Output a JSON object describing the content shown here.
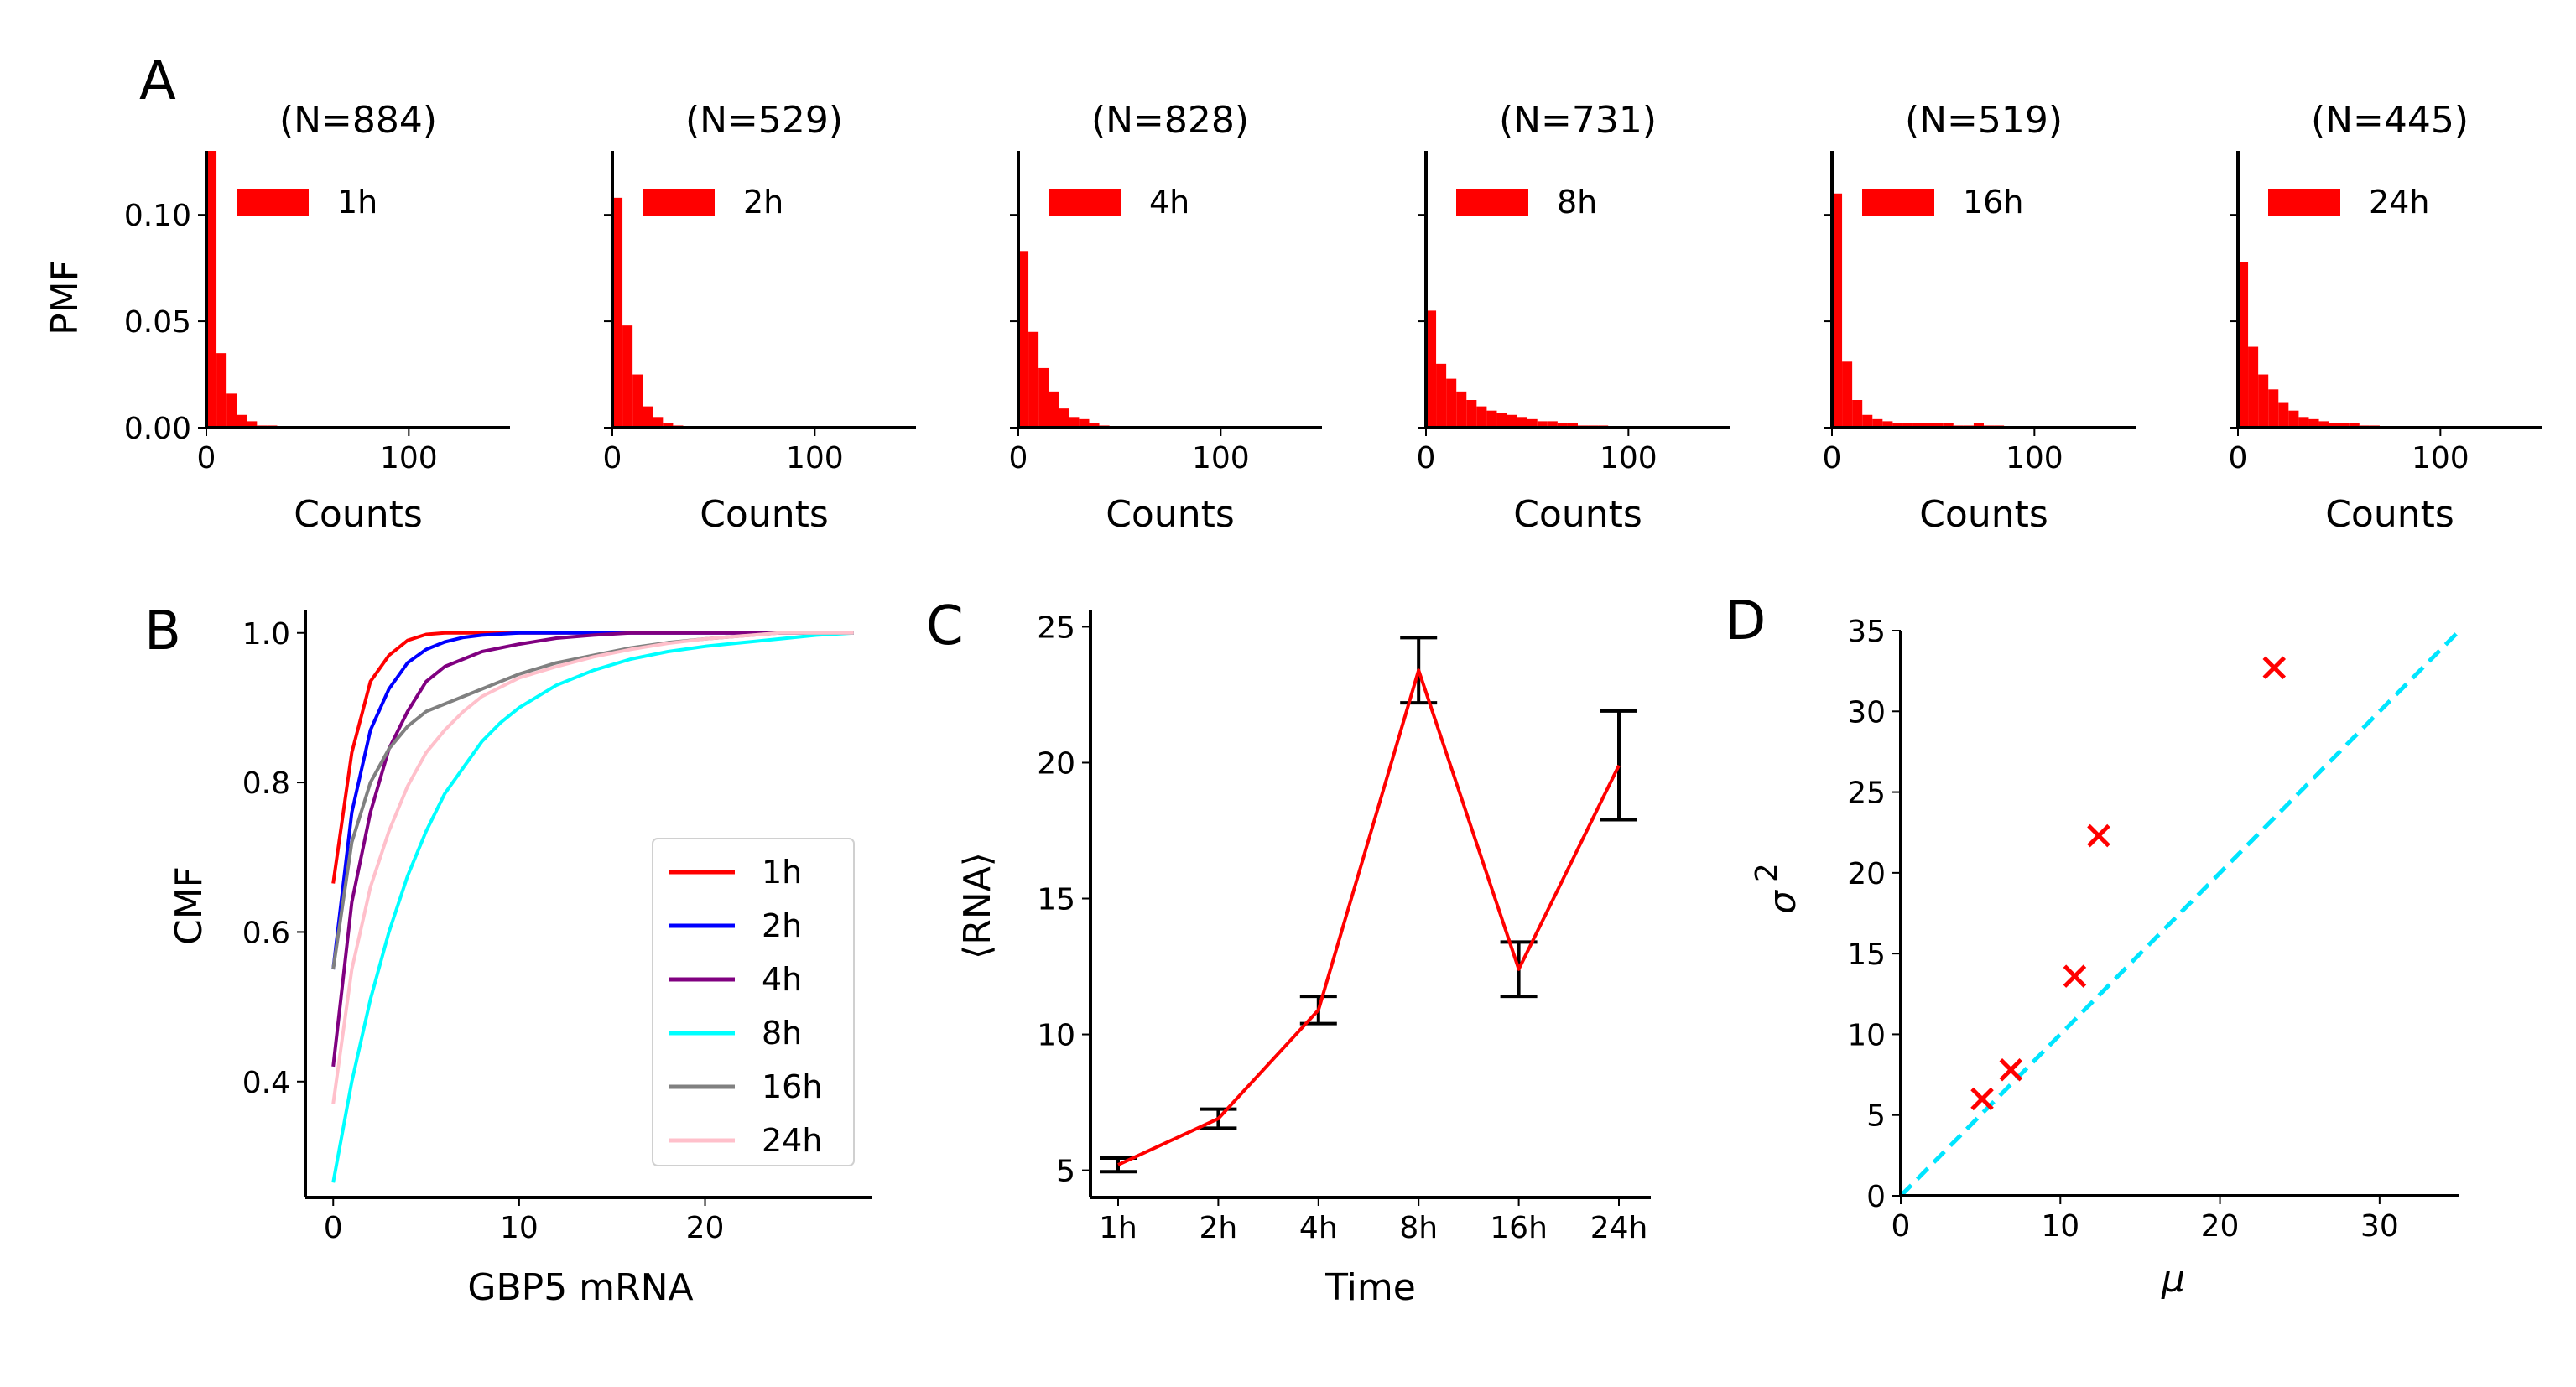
{
  "panel_letters": [
    "A",
    "B",
    "C",
    "D"
  ],
  "chart_data": [
    {
      "panel": "A",
      "type": "bar",
      "title": "(N=884)",
      "legend": "1h",
      "xlabel": "Counts",
      "ylabel": "PMF",
      "xlim": [
        0,
        150
      ],
      "ylim": [
        0,
        0.13
      ],
      "xticks": [
        0,
        100
      ],
      "yticks": [
        0.0,
        0.05,
        0.1
      ],
      "ytick_labels": [
        "0.00",
        "0.05",
        "0.10"
      ],
      "bin_width": 5,
      "values": [
        0.13,
        0.035,
        0.016,
        0.006,
        0.003,
        0.001,
        0.001,
        0.0005,
        0,
        0,
        0,
        0,
        0,
        0,
        0,
        0,
        0,
        0,
        0,
        0,
        0,
        0,
        0,
        0,
        0,
        0,
        0,
        0,
        0,
        0
      ],
      "color": "#ff0000"
    },
    {
      "panel": "A",
      "type": "bar",
      "title": "(N=529)",
      "legend": "2h",
      "xlabel": "Counts",
      "xlim": [
        0,
        150
      ],
      "ylim": [
        0,
        0.13
      ],
      "xticks": [
        0,
        100
      ],
      "bin_width": 5,
      "values": [
        0.108,
        0.048,
        0.025,
        0.01,
        0.005,
        0.002,
        0.001,
        0.0005,
        0,
        0,
        0,
        0,
        0,
        0,
        0,
        0,
        0,
        0,
        0,
        0,
        0,
        0,
        0,
        0,
        0,
        0,
        0,
        0,
        0,
        0
      ],
      "color": "#ff0000"
    },
    {
      "panel": "A",
      "type": "bar",
      "title": "(N=828)",
      "legend": "4h",
      "xlabel": "Counts",
      "xlim": [
        0,
        150
      ],
      "ylim": [
        0,
        0.13
      ],
      "xticks": [
        0,
        100
      ],
      "bin_width": 5,
      "values": [
        0.083,
        0.045,
        0.028,
        0.017,
        0.009,
        0.005,
        0.004,
        0.002,
        0.001,
        0.0005,
        0,
        0,
        0,
        0,
        0,
        0,
        0,
        0,
        0,
        0,
        0,
        0,
        0,
        0,
        0,
        0,
        0,
        0,
        0,
        0
      ],
      "color": "#ff0000"
    },
    {
      "panel": "A",
      "type": "bar",
      "title": "(N=731)",
      "legend": "8h",
      "xlabel": "Counts",
      "xlim": [
        0,
        150
      ],
      "ylim": [
        0,
        0.13
      ],
      "xticks": [
        0,
        100
      ],
      "bin_width": 5,
      "values": [
        0.055,
        0.03,
        0.023,
        0.017,
        0.013,
        0.01,
        0.008,
        0.007,
        0.006,
        0.005,
        0.004,
        0.003,
        0.003,
        0.002,
        0.002,
        0.001,
        0.001,
        0.001,
        0.0005,
        0.0005,
        0,
        0,
        0,
        0,
        0,
        0,
        0,
        0,
        0,
        0
      ],
      "color": "#ff0000"
    },
    {
      "panel": "A",
      "type": "bar",
      "title": "(N=519)",
      "legend": "16h",
      "xlabel": "Counts",
      "xlim": [
        0,
        150
      ],
      "ylim": [
        0,
        0.13
      ],
      "xticks": [
        0,
        100
      ],
      "bin_width": 5,
      "values": [
        0.11,
        0.031,
        0.013,
        0.006,
        0.004,
        0.003,
        0.002,
        0.002,
        0.002,
        0.002,
        0.002,
        0.002,
        0.001,
        0.001,
        0.002,
        0.001,
        0.001,
        0,
        0,
        0,
        0,
        0,
        0,
        0,
        0,
        0,
        0,
        0,
        0,
        0
      ],
      "color": "#ff0000"
    },
    {
      "panel": "A",
      "type": "bar",
      "title": "(N=445)",
      "legend": "24h",
      "xlabel": "Counts",
      "xlim": [
        0,
        150
      ],
      "ylim": [
        0,
        0.13
      ],
      "xticks": [
        0,
        100
      ],
      "bin_width": 5,
      "values": [
        0.078,
        0.038,
        0.025,
        0.018,
        0.012,
        0.008,
        0.005,
        0.004,
        0.003,
        0.002,
        0.002,
        0.002,
        0.001,
        0.001,
        0,
        0,
        0,
        0,
        0,
        0,
        0,
        0,
        0,
        0,
        0,
        0,
        0,
        0,
        0,
        0
      ],
      "color": "#ff0000"
    },
    {
      "panel": "B",
      "type": "line",
      "xlabel": "GBP5 mRNA",
      "ylabel": "CMF",
      "xlim": [
        -1.5,
        29
      ],
      "ylim": [
        0.245,
        1.03
      ],
      "xticks": [
        0,
        10,
        20
      ],
      "yticks": [
        0.4,
        0.6,
        0.8,
        1.0
      ],
      "ytick_labels": [
        "0.4",
        "0.6",
        "0.8",
        "1.0"
      ],
      "legend_position": "lower right",
      "series": [
        {
          "name": "1h",
          "color": "#ff0000",
          "x": [
            0,
            1,
            2,
            3,
            4,
            5,
            6,
            7,
            8,
            28
          ],
          "y": [
            0.665,
            0.84,
            0.935,
            0.97,
            0.99,
            0.998,
            1.0,
            1.0,
            1.0,
            1.0
          ]
        },
        {
          "name": "2h",
          "color": "#0000ff",
          "x": [
            0,
            1,
            2,
            3,
            4,
            5,
            6,
            7,
            8,
            10,
            12,
            28
          ],
          "y": [
            0.55,
            0.76,
            0.87,
            0.925,
            0.96,
            0.978,
            0.988,
            0.994,
            0.997,
            1.0,
            1.0,
            1.0
          ]
        },
        {
          "name": "4h",
          "color": "#800080",
          "x": [
            0,
            1,
            2,
            3,
            4,
            5,
            6,
            8,
            10,
            12,
            14,
            16,
            28
          ],
          "y": [
            0.42,
            0.64,
            0.76,
            0.845,
            0.895,
            0.935,
            0.955,
            0.975,
            0.985,
            0.993,
            0.997,
            1.0,
            1.0
          ]
        },
        {
          "name": "8h",
          "color": "#00ffff",
          "x": [
            0,
            1,
            2,
            3,
            4,
            5,
            6,
            7,
            8,
            9,
            10,
            12,
            14,
            16,
            18,
            20,
            22,
            24,
            26,
            28
          ],
          "y": [
            0.265,
            0.4,
            0.51,
            0.6,
            0.675,
            0.735,
            0.785,
            0.82,
            0.855,
            0.88,
            0.9,
            0.93,
            0.95,
            0.965,
            0.975,
            0.982,
            0.987,
            0.992,
            0.997,
            1.0
          ]
        },
        {
          "name": "16h",
          "color": "#808080",
          "x": [
            0,
            1,
            2,
            3,
            4,
            5,
            6,
            8,
            10,
            12,
            14,
            16,
            18,
            20,
            22,
            24,
            28
          ],
          "y": [
            0.55,
            0.72,
            0.8,
            0.845,
            0.875,
            0.895,
            0.905,
            0.925,
            0.945,
            0.96,
            0.97,
            0.98,
            0.987,
            0.992,
            0.996,
            1.0,
            1.0
          ]
        },
        {
          "name": "24h",
          "color": "#ffc0cb",
          "x": [
            0,
            1,
            2,
            3,
            4,
            5,
            6,
            7,
            8,
            10,
            12,
            14,
            16,
            18,
            20,
            22,
            24,
            28
          ],
          "y": [
            0.37,
            0.55,
            0.66,
            0.735,
            0.795,
            0.84,
            0.87,
            0.895,
            0.915,
            0.94,
            0.955,
            0.968,
            0.978,
            0.986,
            0.992,
            0.996,
            1.0,
            1.0
          ]
        }
      ]
    },
    {
      "panel": "C",
      "type": "line",
      "xlabel": "Time",
      "ylabel": "⟨RNA⟩",
      "categories": [
        "1h",
        "2h",
        "4h",
        "8h",
        "16h",
        "24h"
      ],
      "values": [
        5.2,
        6.9,
        10.9,
        23.4,
        12.4,
        19.9
      ],
      "error": [
        0.25,
        0.35,
        0.5,
        1.2,
        1.0,
        2.0
      ],
      "ylim": [
        4.0,
        25.6
      ],
      "yticks": [
        5,
        10,
        15,
        20,
        25
      ],
      "line_color": "#ff0000",
      "errorbar_color": "#000000"
    },
    {
      "panel": "D",
      "type": "scatter",
      "xlabel": "μ",
      "ylabel": "σ",
      "ylabel_superscript": "2",
      "xlim": [
        0,
        35
      ],
      "ylim": [
        0,
        35
      ],
      "xticks": [
        0,
        10,
        20,
        30
      ],
      "yticks": [
        0,
        5,
        10,
        15,
        20,
        25,
        30,
        35
      ],
      "points": [
        {
          "x": 5.1,
          "y": 6.0
        },
        {
          "x": 6.9,
          "y": 7.8
        },
        {
          "x": 10.9,
          "y": 13.6
        },
        {
          "x": 12.4,
          "y": 22.3
        },
        {
          "x": 23.4,
          "y": 32.7
        }
      ],
      "marker": "x",
      "marker_color": "#ff0000",
      "reference_line": {
        "x": [
          0,
          35
        ],
        "y": [
          0,
          35
        ],
        "color": "#00e5ff",
        "style": "dashed"
      }
    }
  ]
}
